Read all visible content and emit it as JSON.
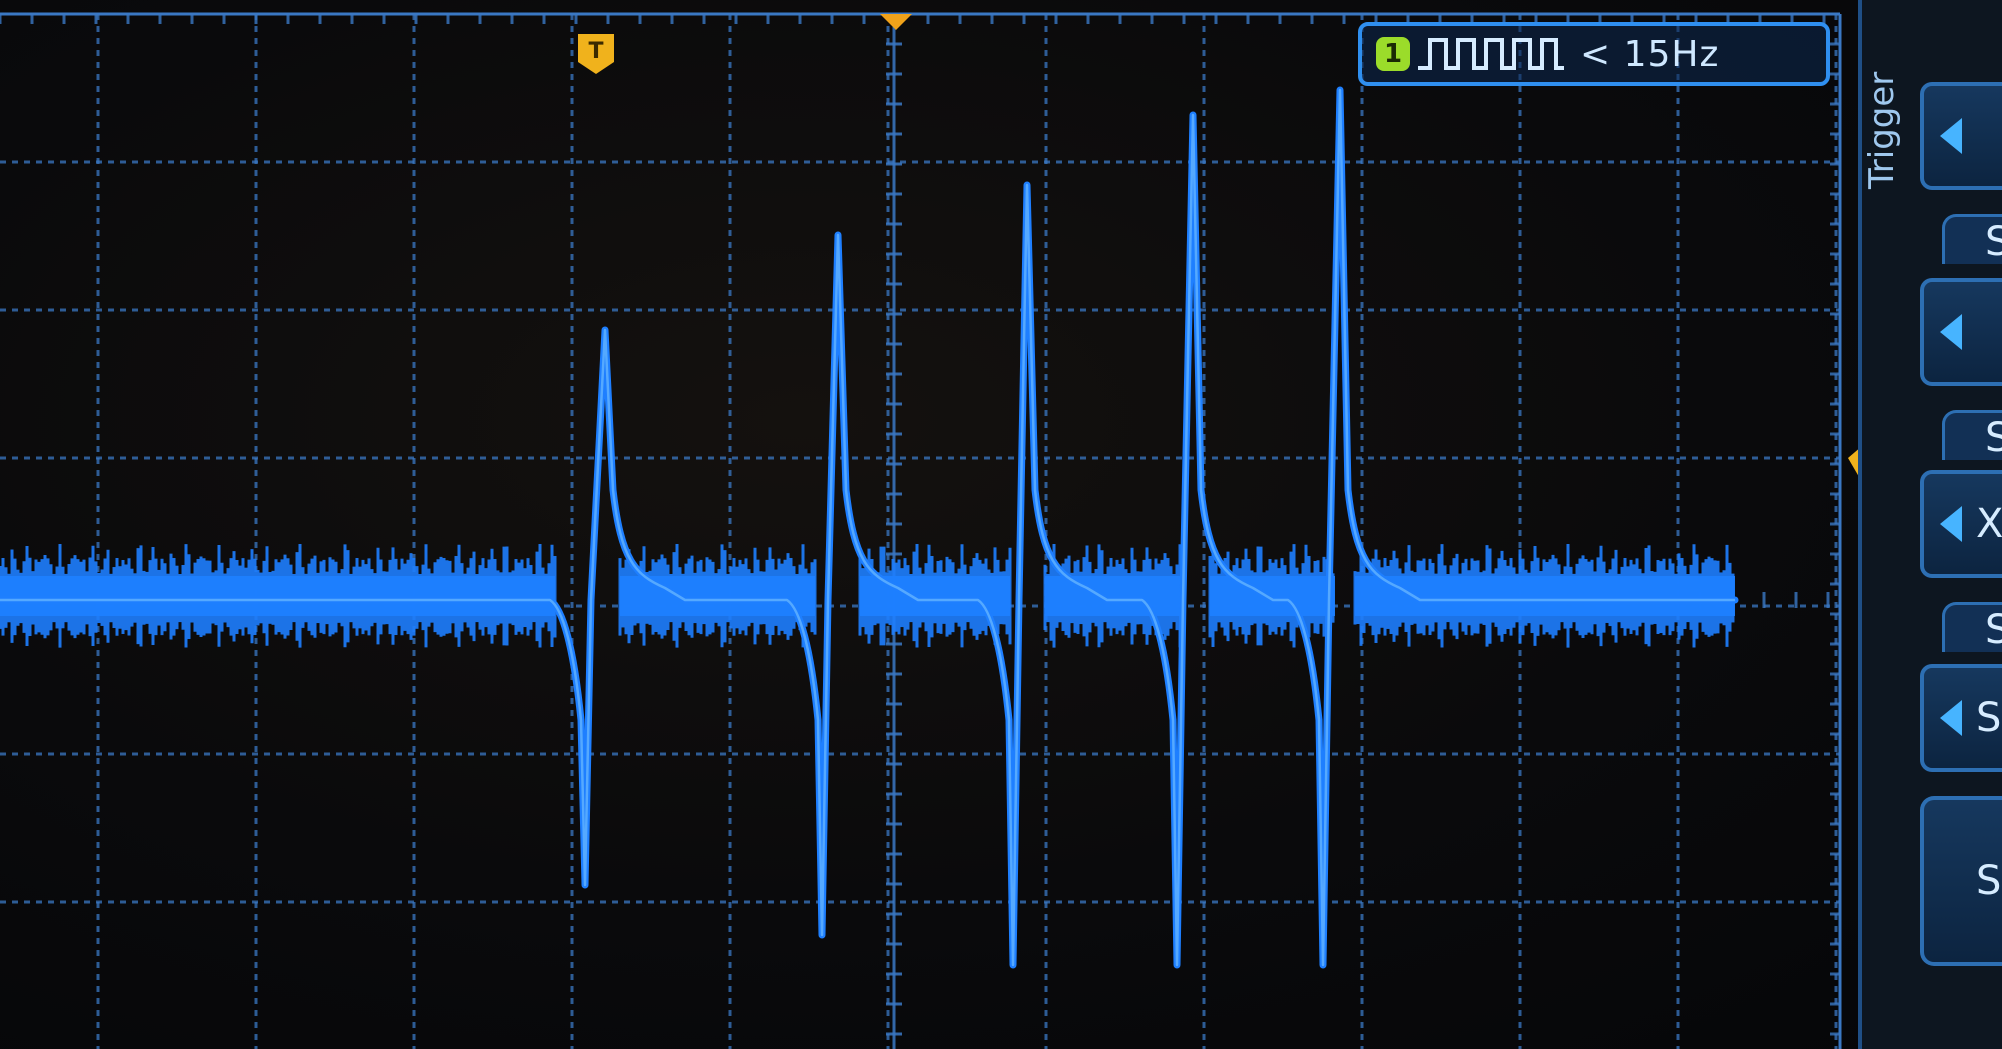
{
  "display": {
    "trace_color": "#1e7fff",
    "grid_color": "#3a78c4",
    "background_color": "#0a0a0c"
  },
  "freq_readout": {
    "channel": "1",
    "icon": "pulse-train-icon",
    "text": "< 15Hz"
  },
  "trigger_panel": {
    "label": "Trigger",
    "buttons": [
      {
        "letter": "",
        "icon": "left-arrow-icon"
      },
      {
        "letter": "",
        "icon": "left-arrow-icon"
      },
      {
        "letter": "X",
        "icon": "left-arrow-icon"
      },
      {
        "letter": "S",
        "icon": "left-arrow-icon"
      },
      {
        "letter": "S",
        "icon": ""
      }
    ],
    "headers": [
      "S",
      "S",
      "S"
    ]
  },
  "markers": {
    "trigger_time_label": "T",
    "trigger_level_label": "T"
  }
}
